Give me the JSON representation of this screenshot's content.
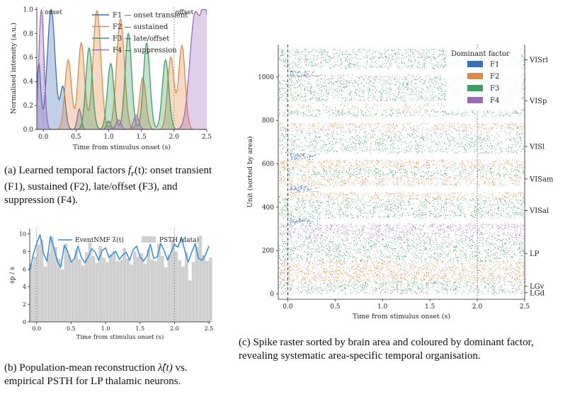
{
  "panel_a": {
    "xlabel": "Time from stimulus onset (s)",
    "ylabel": "Normalised intensity (a.u.)",
    "annotations": [
      "onset",
      "offset"
    ],
    "caption_parts": [
      "(a) Learned temporal factors ",
      "f",
      "r",
      "(t)",
      ": onset transient (F1), sustained (F2), late/offset (F3), and suppression (F4)."
    ]
  },
  "panel_b": {
    "xlabel": "Time from stimulus onset (s)",
    "ylabel": "sp / s",
    "caption_parts": [
      "(b) Population-mean reconstruction ",
      "λ̂(t)",
      " vs. empirical PSTH for LP thalamic neurons."
    ]
  },
  "panel_c": {
    "xlabel": "Time from stimulus onset (s)",
    "ylabel": "Unit (sorted by area)",
    "legend_title": "Dominant factor",
    "caption": "(c) Spike raster sorted by brain area and coloured by dominant factor, revealing systematic area-specific temporal organisation."
  },
  "chart_data": [
    {
      "type": "area",
      "id": "temporal_factors",
      "xlabel": "Time from stimulus onset (s)",
      "ylabel": "Normalised intensity (a.u.)",
      "xlim": [
        -0.1,
        2.5
      ],
      "ylim": [
        0,
        1.02
      ],
      "xticks": [
        0.0,
        0.5,
        1.0,
        1.5,
        2.0,
        2.5
      ],
      "yticks": [
        0.0,
        0.2,
        0.4,
        0.6,
        0.8,
        1.0
      ],
      "vlines": [
        0.0,
        2.0
      ],
      "legend_position": "top-right",
      "series": [
        {
          "name": "F1 — onset transient",
          "color": "#3a6fb5",
          "peaks": [
            {
              "t": 0.12,
              "a": 1.0,
              "w": 0.06
            },
            {
              "t": -0.07,
              "a": 0.55,
              "w": 0.03
            },
            {
              "t": 0.3,
              "a": 0.35,
              "w": 0.04
            },
            {
              "t": 0.55,
              "a": 0.17,
              "w": 0.03
            },
            {
              "t": 1.0,
              "a": 0.07,
              "w": 0.03
            }
          ]
        },
        {
          "name": "F2 — sustained",
          "color": "#e08a45",
          "peaks": [
            {
              "t": 0.38,
              "a": 0.58,
              "w": 0.05
            },
            {
              "t": 0.58,
              "a": 0.72,
              "w": 0.05
            },
            {
              "t": 0.82,
              "a": 0.99,
              "w": 0.06
            },
            {
              "t": 1.18,
              "a": 0.92,
              "w": 0.06
            },
            {
              "t": 1.52,
              "a": 0.43,
              "w": 0.05
            },
            {
              "t": 1.95,
              "a": 0.6,
              "w": 0.05
            },
            {
              "t": 2.12,
              "a": 0.7,
              "w": 0.05
            }
          ]
        },
        {
          "name": "F3 — late/offset",
          "color": "#3e9e64",
          "peaks": [
            {
              "t": 0.7,
              "a": 0.68,
              "w": 0.05
            },
            {
              "t": 1.03,
              "a": 0.55,
              "w": 0.05
            },
            {
              "t": 1.3,
              "a": 0.8,
              "w": 0.05
            },
            {
              "t": 1.58,
              "a": 0.72,
              "w": 0.05
            },
            {
              "t": 1.87,
              "a": 0.58,
              "w": 0.05
            }
          ]
        },
        {
          "name": "F4 — suppression",
          "color": "#9b6bb8",
          "peaks": [
            {
              "t": -0.03,
              "a": 1.0,
              "w": 0.04
            },
            {
              "t": 2.32,
              "a": 0.95,
              "w": 0.08
            },
            {
              "t": 2.48,
              "a": 0.93,
              "w": 0.06
            },
            {
              "t": 1.42,
              "a": 0.12,
              "w": 0.04
            },
            {
              "t": 1.15,
              "a": 0.08,
              "w": 0.04
            }
          ]
        }
      ]
    },
    {
      "type": "bar",
      "id": "reconstruction_vs_psth",
      "xlabel": "Time from stimulus onset (s)",
      "ylabel": "sp / s",
      "xlim": [
        -0.1,
        2.52
      ],
      "ylim": [
        0,
        10.6
      ],
      "xticks": [
        0.0,
        0.5,
        1.0,
        1.5,
        2.0,
        2.5
      ],
      "yticks": [
        0,
        2,
        4,
        6,
        8,
        10
      ],
      "vlines": [
        0.0,
        2.0
      ],
      "legend_position": "top",
      "series": [
        {
          "name": "PSTH (data)",
          "color": "#cfcfcf",
          "bin_width": 0.05,
          "x_start": -0.1,
          "values": [
            6.6,
            7.4,
            8.8,
            9.3,
            6.3,
            7.8,
            9.7,
            8.5,
            7.2,
            6.0,
            8.9,
            7.6,
            6.9,
            8.2,
            7.1,
            6.4,
            7.9,
            9.0,
            7.5,
            6.7,
            8.6,
            7.3,
            6.8,
            7.7,
            8.1,
            6.9,
            7.0,
            8.4,
            7.2,
            6.5,
            8.0,
            7.4,
            7.8,
            6.6,
            8.3,
            7.1,
            6.9,
            8.9,
            7.5,
            6.2,
            7.6,
            9.3,
            8.0,
            7.0,
            6.3,
            7.9,
            4.7,
            6.8,
            8.5,
            9.8,
            7.6,
            6.9,
            7.3
          ]
        },
        {
          "name": "EventNMF λ̂(t)",
          "color": "#2d8fe0",
          "x": [
            -0.1,
            -0.05,
            0.0,
            0.05,
            0.1,
            0.15,
            0.2,
            0.25,
            0.3,
            0.35,
            0.4,
            0.45,
            0.5,
            0.55,
            0.6,
            0.65,
            0.7,
            0.75,
            0.8,
            0.85,
            0.9,
            0.95,
            1.0,
            1.05,
            1.1,
            1.15,
            1.2,
            1.25,
            1.3,
            1.35,
            1.4,
            1.45,
            1.5,
            1.55,
            1.6,
            1.65,
            1.7,
            1.75,
            1.8,
            1.85,
            1.9,
            1.95,
            2.0,
            2.05,
            2.1,
            2.15,
            2.2,
            2.25,
            2.3,
            2.35,
            2.4,
            2.45,
            2.5
          ],
          "y": [
            5.8,
            7.6,
            8.9,
            9.9,
            7.8,
            6.9,
            9.7,
            8.4,
            6.9,
            6.2,
            8.7,
            8.0,
            6.8,
            7.2,
            8.6,
            7.3,
            6.7,
            7.4,
            8.3,
            7.9,
            7.0,
            8.1,
            8.4,
            7.3,
            7.7,
            8.0,
            7.1,
            7.6,
            7.9,
            7.0,
            8.2,
            8.6,
            7.4,
            6.9,
            7.5,
            8.8,
            7.2,
            7.4,
            8.9,
            8.1,
            7.0,
            7.9,
            8.8,
            8.5,
            9.6,
            8.1,
            6.8,
            7.9,
            8.9,
            7.2,
            7.0,
            7.6,
            8.6
          ]
        }
      ]
    },
    {
      "type": "scatter",
      "id": "spike_raster",
      "xlabel": "Time from stimulus onset (s)",
      "ylabel": "Unit (sorted by area)",
      "xlim": [
        -0.1,
        2.5
      ],
      "ylim": [
        -25,
        1150
      ],
      "xticks": [
        0.0,
        0.5,
        1.0,
        1.5,
        2.0,
        2.5
      ],
      "yticks": [
        0,
        200,
        400,
        600,
        800,
        1000
      ],
      "vlines": [
        0.0,
        2.0
      ],
      "legend_title": "Dominant factor",
      "legend_position": "top-right",
      "legend": [
        {
          "name": "F1",
          "color": "#3a6fb5"
        },
        {
          "name": "F2",
          "color": "#e08a45"
        },
        {
          "name": "F3",
          "color": "#3e9e64"
        },
        {
          "name": "F4",
          "color": "#9b6bb8"
        }
      ],
      "area_labels": [
        {
          "name": "VISrl",
          "unit": 1080
        },
        {
          "name": "VISp",
          "unit": 890
        },
        {
          "name": "VISl",
          "unit": 680
        },
        {
          "name": "VISam",
          "unit": 530
        },
        {
          "name": "VISal",
          "unit": 385
        },
        {
          "name": "LP",
          "unit": 185
        },
        {
          "name": "LGv",
          "unit": 35
        },
        {
          "name": "LGd",
          "unit": 5
        }
      ],
      "bands": [
        {
          "from": 1040,
          "to": 1130,
          "factor": "F3",
          "density": 0.35
        },
        {
          "from": 1000,
          "to": 1012,
          "factor": "F4",
          "density": 0.3
        },
        {
          "from": 1005,
          "to": 1030,
          "factor": "F1",
          "early": true
        },
        {
          "from": 890,
          "to": 1000,
          "factor": "F3",
          "density": 0.35
        },
        {
          "from": 850,
          "to": 880,
          "factor": "F2",
          "density": 0.2
        },
        {
          "from": 820,
          "to": 850,
          "factor": "F3",
          "density": 0.35
        },
        {
          "from": 760,
          "to": 790,
          "factor": "F2",
          "density": 0.4
        },
        {
          "from": 740,
          "to": 760,
          "factor": "F4",
          "density": 0.25
        },
        {
          "from": 650,
          "to": 740,
          "factor": "F3",
          "density": 0.3
        },
        {
          "from": 620,
          "to": 650,
          "factor": "F1",
          "early": true
        },
        {
          "from": 580,
          "to": 620,
          "factor": "F2",
          "density": 0.45
        },
        {
          "from": 540,
          "to": 580,
          "factor": "F3",
          "density": 0.35
        },
        {
          "from": 500,
          "to": 540,
          "factor": "F2",
          "density": 0.4
        },
        {
          "from": 470,
          "to": 500,
          "factor": "F1",
          "early": true
        },
        {
          "from": 440,
          "to": 470,
          "factor": "F2",
          "density": 0.4
        },
        {
          "from": 350,
          "to": 440,
          "factor": "F3",
          "density": 0.35
        },
        {
          "from": 325,
          "to": 350,
          "factor": "F1",
          "early": true
        },
        {
          "from": 255,
          "to": 325,
          "factor": "F4",
          "density": 0.4
        },
        {
          "from": 150,
          "to": 255,
          "factor": "F3",
          "density": 0.35
        },
        {
          "from": 120,
          "to": 150,
          "factor": "F2",
          "density": 0.4
        },
        {
          "from": 60,
          "to": 120,
          "factor": "F2",
          "density": 0.5
        },
        {
          "from": 15,
          "to": 60,
          "factor": "F3",
          "density": 0.4
        },
        {
          "from": 0,
          "to": 15,
          "factor": "F4",
          "density": 0.3
        }
      ]
    }
  ]
}
